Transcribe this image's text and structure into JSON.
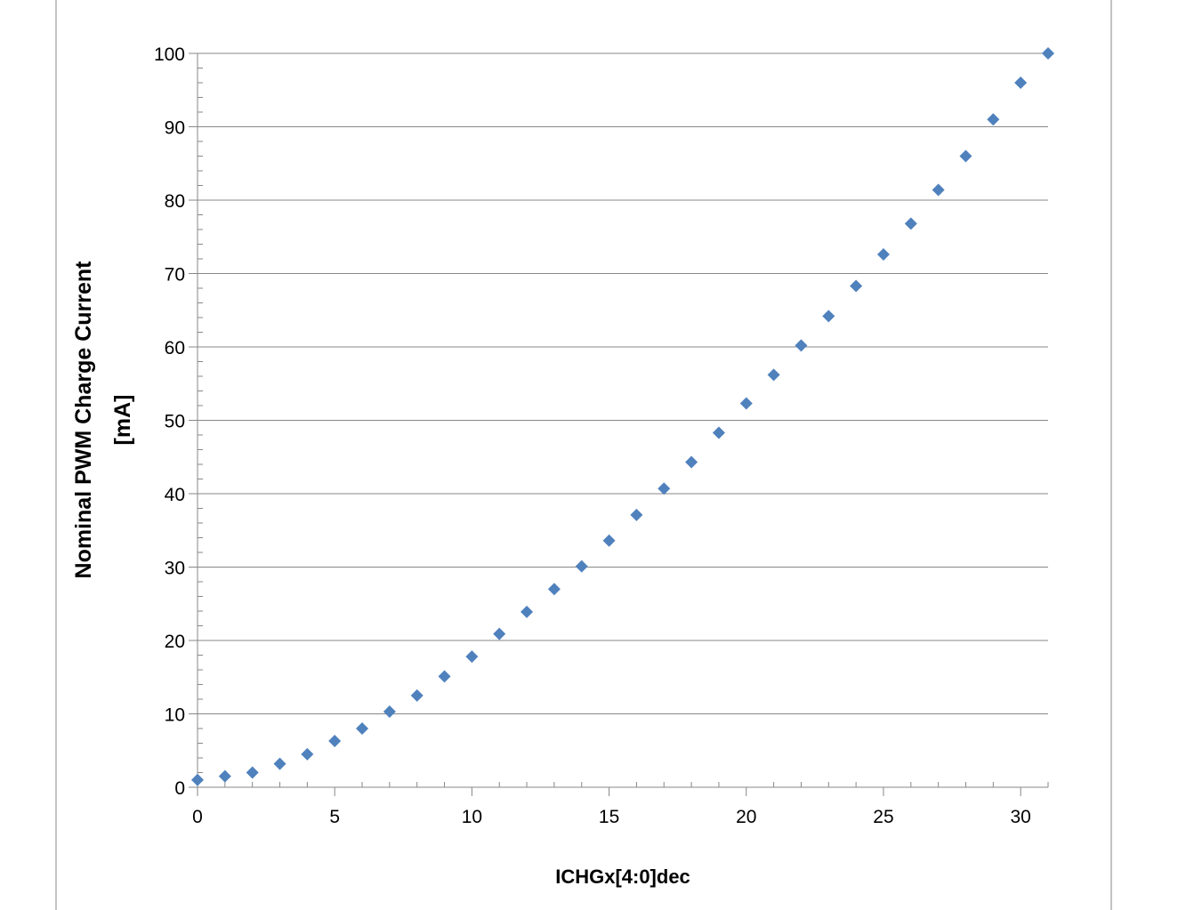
{
  "chart_data": {
    "type": "scatter",
    "title": "",
    "xlabel": "ICHGx[4:0]dec",
    "ylabel_lines": [
      "Nominal PWM Charge Current",
      "[mA]"
    ],
    "xlim": [
      0,
      31
    ],
    "ylim": [
      0,
      100
    ],
    "x_ticks": [
      0,
      5,
      10,
      15,
      20,
      25,
      30
    ],
    "y_ticks": [
      0,
      10,
      20,
      30,
      40,
      50,
      60,
      70,
      80,
      90,
      100
    ],
    "grid": "horizontal major",
    "legend": "none",
    "marker": "diamond",
    "color": "#4f81bd",
    "x": [
      0,
      1,
      2,
      3,
      4,
      5,
      6,
      7,
      8,
      9,
      10,
      11,
      12,
      13,
      14,
      15,
      16,
      17,
      18,
      19,
      20,
      21,
      22,
      23,
      24,
      25,
      26,
      27,
      28,
      29,
      30,
      31
    ],
    "y": [
      1.0,
      1.5,
      2.0,
      3.2,
      4.5,
      6.3,
      8.0,
      10.3,
      12.5,
      15.1,
      17.8,
      20.9,
      23.9,
      27.0,
      30.1,
      33.6,
      37.1,
      40.7,
      44.3,
      48.3,
      52.3,
      56.2,
      60.2,
      64.2,
      68.3,
      72.6,
      76.8,
      81.4,
      86.0,
      91.0,
      96.0,
      100.0
    ]
  }
}
